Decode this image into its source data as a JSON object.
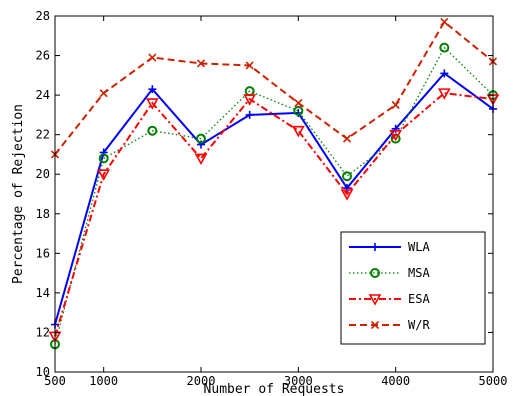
{
  "chart_data": {
    "type": "line",
    "xlabel": "Number of Requests",
    "ylabel": "Percentage of Rejection",
    "xlim": [
      500,
      5000
    ],
    "ylim": [
      10,
      28
    ],
    "x_ticks": [
      500,
      1000,
      2000,
      3000,
      4000,
      5000
    ],
    "y_ticks": [
      10,
      12,
      14,
      16,
      18,
      20,
      22,
      24,
      26,
      28
    ],
    "x": [
      500,
      1000,
      1500,
      2000,
      2500,
      3000,
      3500,
      4000,
      4500,
      5000
    ],
    "grid": false,
    "legend_position": "bottom-right",
    "series": [
      {
        "name": "WLA",
        "values": [
          12.4,
          21.1,
          24.3,
          21.5,
          23.0,
          23.1,
          19.3,
          22.3,
          25.1,
          23.3
        ],
        "color": "#0000ff",
        "linestyle": "solid",
        "marker": "plus"
      },
      {
        "name": "MSA",
        "values": [
          11.4,
          20.8,
          22.2,
          21.8,
          24.2,
          23.2,
          19.9,
          21.8,
          26.4,
          24.0
        ],
        "color": "#008000",
        "linestyle": "dotted",
        "marker": "circle"
      },
      {
        "name": "ESA",
        "values": [
          11.8,
          20.0,
          23.6,
          20.8,
          23.8,
          22.2,
          19.0,
          22.0,
          24.1,
          23.8
        ],
        "color": "#ff0000",
        "linestyle": "dashdot",
        "marker": "triangle-down"
      },
      {
        "name": "W/R",
        "values": [
          21.0,
          24.1,
          25.9,
          25.6,
          25.5,
          23.6,
          21.8,
          23.5,
          27.7,
          25.7
        ],
        "color": "#cc2200",
        "linestyle": "dashed",
        "marker": "x"
      }
    ]
  }
}
